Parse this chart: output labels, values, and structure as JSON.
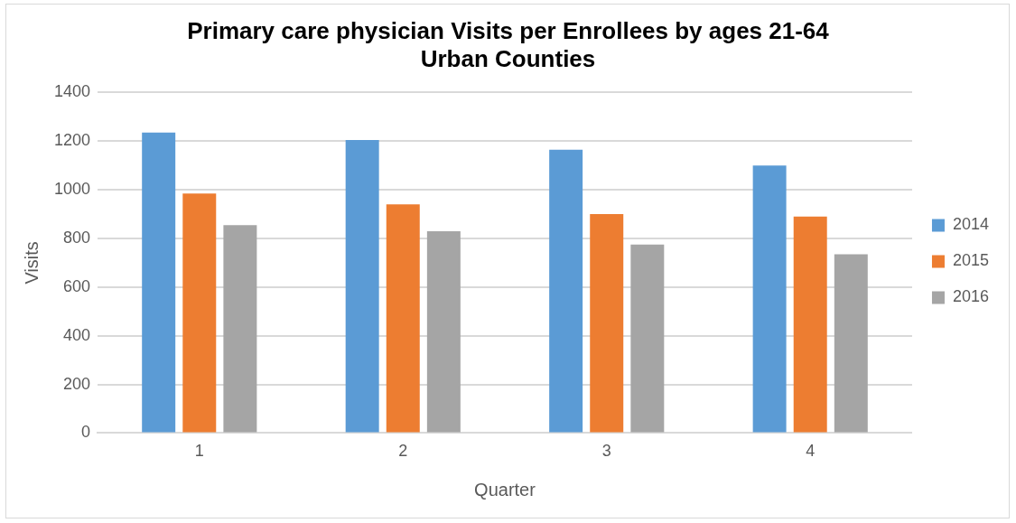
{
  "chart_data": {
    "type": "bar",
    "title": "Primary care physician Visits per Enrollees by ages 21-64",
    "subtitle": "Urban Counties",
    "xlabel": "Quarter",
    "ylabel": "Visits",
    "categories": [
      "1",
      "2",
      "3",
      "4"
    ],
    "series": [
      {
        "name": "2014",
        "color": "#5b9bd5",
        "values": [
          1235,
          1205,
          1165,
          1100
        ]
      },
      {
        "name": "2015",
        "color": "#ed7d31",
        "values": [
          985,
          940,
          900,
          890
        ]
      },
      {
        "name": "2016",
        "color": "#a5a5a5",
        "values": [
          855,
          830,
          775,
          735
        ]
      }
    ],
    "ylim": [
      0,
      1400
    ],
    "yticks": [
      0,
      200,
      400,
      600,
      800,
      1000,
      1200,
      1400
    ],
    "grid": "y",
    "legend": "right"
  }
}
